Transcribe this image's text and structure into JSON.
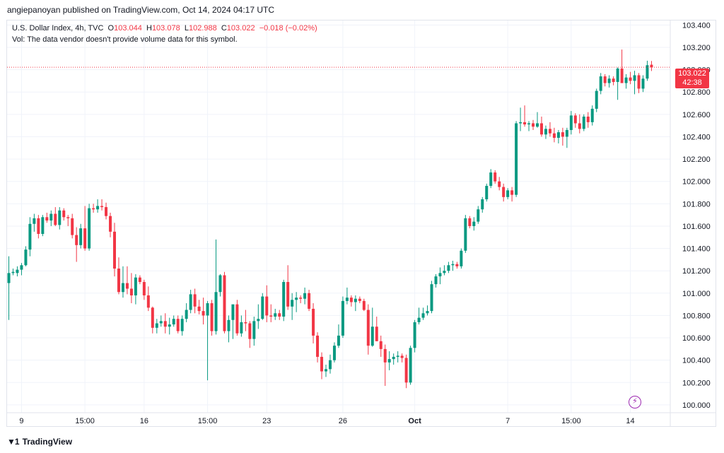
{
  "header": {
    "published": "angiepanoyan published on TradingView.com, Oct 14, 2024 04:17 UTC"
  },
  "legend": {
    "symbol": "U.S. Dollar Index, 4h, TVC",
    "o_label": "O",
    "o_val": "103.044",
    "h_label": "H",
    "h_val": "103.078",
    "l_label": "L",
    "l_val": "102.988",
    "c_label": "C",
    "c_val": "103.022",
    "change": "−0.018 (−0.02%)",
    "vol_note": "Vol: The data vendor doesn't provide volume data for this symbol."
  },
  "price_badge": {
    "price": "103.022",
    "countdown": "42:38"
  },
  "footer": {
    "brand": "TradingView"
  },
  "colors": {
    "up": "#089981",
    "down": "#f23645",
    "grid": "#f0f3fa",
    "text": "#131722",
    "badge": "#f23645"
  },
  "chart_data": {
    "type": "candlestick",
    "title": "U.S. Dollar Index, 4h, TVC",
    "ylim": [
      99.93,
      103.44
    ],
    "yticks": [
      "100.000",
      "100.200",
      "100.400",
      "100.600",
      "100.800",
      "101.000",
      "101.200",
      "101.400",
      "101.600",
      "101.800",
      "102.000",
      "102.200",
      "102.400",
      "102.600",
      "102.800",
      "103.000",
      "103.200",
      "103.400"
    ],
    "xticks": [
      {
        "label": "9",
        "idx": 3
      },
      {
        "label": "15:00",
        "idx": 18
      },
      {
        "label": "16",
        "idx": 32
      },
      {
        "label": "15:00",
        "idx": 47
      },
      {
        "label": "23",
        "idx": 61
      },
      {
        "label": "26",
        "idx": 79
      },
      {
        "label": "Oct",
        "idx": 96,
        "bold": true
      },
      {
        "label": "7",
        "idx": 118
      },
      {
        "label": "15:00",
        "idx": 133
      },
      {
        "label": "14",
        "idx": 147
      }
    ],
    "last_price": 103.022,
    "ohlc": [
      [
        101.09,
        101.33,
        100.76,
        101.18
      ],
      [
        101.18,
        101.22,
        101.16,
        101.19
      ],
      [
        101.18,
        101.24,
        101.15,
        101.21
      ],
      [
        101.21,
        101.27,
        101.16,
        101.25
      ],
      [
        101.25,
        101.42,
        101.24,
        101.39
      ],
      [
        101.39,
        101.68,
        101.33,
        101.62
      ],
      [
        101.62,
        101.71,
        101.55,
        101.67
      ],
      [
        101.67,
        101.7,
        101.49,
        101.53
      ],
      [
        101.53,
        101.7,
        101.51,
        101.68
      ],
      [
        101.68,
        101.72,
        101.63,
        101.65
      ],
      [
        101.65,
        101.74,
        101.6,
        101.71
      ],
      [
        101.71,
        101.77,
        101.6,
        101.61
      ],
      [
        101.61,
        101.77,
        101.57,
        101.74
      ],
      [
        101.74,
        101.76,
        101.65,
        101.68
      ],
      [
        101.68,
        101.7,
        101.6,
        101.67
      ],
      [
        101.67,
        101.71,
        101.49,
        101.52
      ],
      [
        101.52,
        101.59,
        101.28,
        101.43
      ],
      [
        101.43,
        101.62,
        101.4,
        101.58
      ],
      [
        101.58,
        101.78,
        101.38,
        101.4
      ],
      [
        101.4,
        101.8,
        101.38,
        101.76
      ],
      [
        101.76,
        101.8,
        101.72,
        101.75
      ],
      [
        101.75,
        101.84,
        101.72,
        101.78
      ],
      [
        101.78,
        101.84,
        101.74,
        101.77
      ],
      [
        101.77,
        101.81,
        101.66,
        101.69
      ],
      [
        101.69,
        101.72,
        101.5,
        101.55
      ],
      [
        101.55,
        101.63,
        101.15,
        101.22
      ],
      [
        101.22,
        101.32,
        100.99,
        101.01
      ],
      [
        101.01,
        101.24,
        100.96,
        101.09
      ],
      [
        101.09,
        101.24,
        100.99,
        101.04
      ],
      [
        101.04,
        101.18,
        100.91,
        100.98
      ],
      [
        100.98,
        101.17,
        100.9,
        101.14
      ],
      [
        101.14,
        101.16,
        101.08,
        101.1
      ],
      [
        101.1,
        101.12,
        100.94,
        100.98
      ],
      [
        100.98,
        101.06,
        100.84,
        100.87
      ],
      [
        100.87,
        100.88,
        100.64,
        100.69
      ],
      [
        100.69,
        100.77,
        100.64,
        100.73
      ],
      [
        100.73,
        100.8,
        100.7,
        100.75
      ],
      [
        100.75,
        100.82,
        100.64,
        100.7
      ],
      [
        100.7,
        100.78,
        100.63,
        100.72
      ],
      [
        100.72,
        100.8,
        100.7,
        100.77
      ],
      [
        100.77,
        100.8,
        100.64,
        100.66
      ],
      [
        100.66,
        100.8,
        100.62,
        100.77
      ],
      [
        100.77,
        100.91,
        100.74,
        100.85
      ],
      [
        100.85,
        101.03,
        100.82,
        100.99
      ],
      [
        100.99,
        101.04,
        100.82,
        100.88
      ],
      [
        100.88,
        100.94,
        100.81,
        100.84
      ],
      [
        100.84,
        100.96,
        100.72,
        100.8
      ],
      [
        100.8,
        100.93,
        100.22,
        100.91
      ],
      [
        100.91,
        100.94,
        100.62,
        100.66
      ],
      [
        100.66,
        101.48,
        100.63,
        101.01
      ],
      [
        101.01,
        101.17,
        100.97,
        101.16
      ],
      [
        101.16,
        101.19,
        100.64,
        100.66
      ],
      [
        100.66,
        100.8,
        100.56,
        100.76
      ],
      [
        100.76,
        100.88,
        100.59,
        100.9
      ],
      [
        100.9,
        100.94,
        100.62,
        100.64
      ],
      [
        100.64,
        100.8,
        100.61,
        100.74
      ],
      [
        100.74,
        100.85,
        100.66,
        100.73
      ],
      [
        100.73,
        100.75,
        100.51,
        100.59
      ],
      [
        100.59,
        100.79,
        100.53,
        100.75
      ],
      [
        100.75,
        100.9,
        100.68,
        100.77
      ],
      [
        100.77,
        101.0,
        100.76,
        100.97
      ],
      [
        100.97,
        101.07,
        100.74,
        100.8
      ],
      [
        100.8,
        100.9,
        100.74,
        100.79
      ],
      [
        100.79,
        100.86,
        100.76,
        100.82
      ],
      [
        100.82,
        100.85,
        100.76,
        100.79
      ],
      [
        100.79,
        101.12,
        100.75,
        101.1
      ],
      [
        101.1,
        101.25,
        100.85,
        100.88
      ],
      [
        100.88,
        101.0,
        100.76,
        100.94
      ],
      [
        100.94,
        101.01,
        100.83,
        100.96
      ],
      [
        100.96,
        100.98,
        100.91,
        100.95
      ],
      [
        100.95,
        101.05,
        100.9,
        101.0
      ],
      [
        101.0,
        101.03,
        100.84,
        100.86
      ],
      [
        100.86,
        100.91,
        100.55,
        100.62
      ],
      [
        100.62,
        100.65,
        100.38,
        100.43
      ],
      [
        100.43,
        100.47,
        100.23,
        100.3
      ],
      [
        100.3,
        100.36,
        100.25,
        100.32
      ],
      [
        100.32,
        100.45,
        100.28,
        100.4
      ],
      [
        100.4,
        100.56,
        100.38,
        100.53
      ],
      [
        100.53,
        100.72,
        100.51,
        100.62
      ],
      [
        100.62,
        100.97,
        100.6,
        100.93
      ],
      [
        100.93,
        101.05,
        100.9,
        100.96
      ],
      [
        100.96,
        100.98,
        100.88,
        100.92
      ],
      [
        100.92,
        100.98,
        100.84,
        100.95
      ],
      [
        100.95,
        100.97,
        100.91,
        100.93
      ],
      [
        100.93,
        100.95,
        100.84,
        100.85
      ],
      [
        100.85,
        100.9,
        100.45,
        100.53
      ],
      [
        100.53,
        100.87,
        100.52,
        100.7
      ],
      [
        100.7,
        100.79,
        100.57,
        100.57
      ],
      [
        100.57,
        100.62,
        100.43,
        100.5
      ],
      [
        100.5,
        100.54,
        100.17,
        100.38
      ],
      [
        100.38,
        100.48,
        100.31,
        100.41
      ],
      [
        100.41,
        100.46,
        100.36,
        100.43
      ],
      [
        100.43,
        100.48,
        100.38,
        100.44
      ],
      [
        100.44,
        100.46,
        100.38,
        100.42
      ],
      [
        100.42,
        100.45,
        100.15,
        100.2
      ],
      [
        100.2,
        100.53,
        100.18,
        100.51
      ],
      [
        100.51,
        100.76,
        100.47,
        100.74
      ],
      [
        100.74,
        100.87,
        100.72,
        100.78
      ],
      [
        100.78,
        100.87,
        100.76,
        100.82
      ],
      [
        100.82,
        100.89,
        100.8,
        100.84
      ],
      [
        100.84,
        101.11,
        100.82,
        101.08
      ],
      [
        101.08,
        101.17,
        101.05,
        101.15
      ],
      [
        101.15,
        101.23,
        101.08,
        101.18
      ],
      [
        101.18,
        101.25,
        101.16,
        101.2
      ],
      [
        101.2,
        101.28,
        101.18,
        101.25
      ],
      [
        101.25,
        101.29,
        101.2,
        101.26
      ],
      [
        101.26,
        101.28,
        101.22,
        101.24
      ],
      [
        101.24,
        101.4,
        101.22,
        101.38
      ],
      [
        101.38,
        101.7,
        101.36,
        101.67
      ],
      [
        101.67,
        101.69,
        101.58,
        101.6
      ],
      [
        101.6,
        101.68,
        101.56,
        101.64
      ],
      [
        101.64,
        101.78,
        101.62,
        101.75
      ],
      [
        101.75,
        101.86,
        101.72,
        101.84
      ],
      [
        101.84,
        101.98,
        101.82,
        101.96
      ],
      [
        101.96,
        102.11,
        101.94,
        102.08
      ],
      [
        102.08,
        102.1,
        101.98,
        102.0
      ],
      [
        102.0,
        102.04,
        101.92,
        101.95
      ],
      [
        101.95,
        101.98,
        101.82,
        101.86
      ],
      [
        101.86,
        101.94,
        101.84,
        101.92
      ],
      [
        101.92,
        101.95,
        101.82,
        101.88
      ],
      [
        101.88,
        102.54,
        101.86,
        102.52
      ],
      [
        102.52,
        102.66,
        102.45,
        102.53
      ],
      [
        102.53,
        102.68,
        102.49,
        102.51
      ],
      [
        102.51,
        102.54,
        102.45,
        102.52
      ],
      [
        102.52,
        102.55,
        102.46,
        102.49
      ],
      [
        102.49,
        102.62,
        102.48,
        102.52
      ],
      [
        102.52,
        102.58,
        102.4,
        102.42
      ],
      [
        102.42,
        102.5,
        102.38,
        102.47
      ],
      [
        102.47,
        102.53,
        102.4,
        102.43
      ],
      [
        102.43,
        102.48,
        102.35,
        102.39
      ],
      [
        102.39,
        102.46,
        102.34,
        102.44
      ],
      [
        102.44,
        102.48,
        102.32,
        102.4
      ],
      [
        102.4,
        102.48,
        102.3,
        102.46
      ],
      [
        102.46,
        102.63,
        102.42,
        102.59
      ],
      [
        102.59,
        102.61,
        102.48,
        102.52
      ],
      [
        102.52,
        102.6,
        102.43,
        102.47
      ],
      [
        102.47,
        102.6,
        102.45,
        102.58
      ],
      [
        102.58,
        102.62,
        102.48,
        102.53
      ],
      [
        102.53,
        102.68,
        102.5,
        102.65
      ],
      [
        102.65,
        102.83,
        102.62,
        102.81
      ],
      [
        102.81,
        102.97,
        102.78,
        102.94
      ],
      [
        102.94,
        102.96,
        102.85,
        102.88
      ],
      [
        102.88,
        102.95,
        102.84,
        102.92
      ],
      [
        102.92,
        102.94,
        102.86,
        102.89
      ],
      [
        102.89,
        103.02,
        102.73,
        103.01
      ],
      [
        103.01,
        103.18,
        102.88,
        102.88
      ],
      [
        102.88,
        102.96,
        102.83,
        102.93
      ],
      [
        102.93,
        102.98,
        102.87,
        102.9
      ],
      [
        102.9,
        102.99,
        102.78,
        102.95
      ],
      [
        102.95,
        102.97,
        102.79,
        102.83
      ],
      [
        102.83,
        102.95,
        102.8,
        102.92
      ],
      [
        102.92,
        103.08,
        102.9,
        103.04
      ],
      [
        103.044,
        103.078,
        102.988,
        103.022
      ]
    ]
  }
}
